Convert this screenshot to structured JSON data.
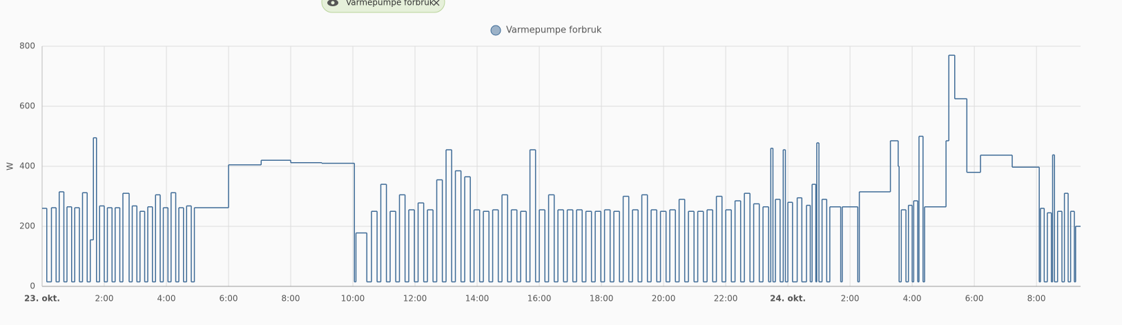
{
  "filter_chip": "Varmepumpe forbruk",
  "chart_data": {
    "type": "line",
    "step": true,
    "ylabel": "W",
    "legend": "top",
    "grid": true,
    "xlim": [
      0,
      33.42
    ],
    "ylim": [
      0,
      800
    ],
    "yticks": [
      0,
      200,
      400,
      600,
      800
    ],
    "xticks": [
      {
        "value": 0,
        "label": "23. okt."
      },
      {
        "value": 2,
        "label": "2:00"
      },
      {
        "value": 4,
        "label": "4:00"
      },
      {
        "value": 6,
        "label": "6:00"
      },
      {
        "value": 8,
        "label": "8:00"
      },
      {
        "value": 10,
        "label": "10:00"
      },
      {
        "value": 12,
        "label": "12:00"
      },
      {
        "value": 14,
        "label": "14:00"
      },
      {
        "value": 16,
        "label": "16:00"
      },
      {
        "value": 18,
        "label": "18:00"
      },
      {
        "value": 20,
        "label": "20:00"
      },
      {
        "value": 22,
        "label": "22:00"
      },
      {
        "value": 24,
        "label": "24. okt."
      },
      {
        "value": 26,
        "label": "2:00"
      },
      {
        "value": 28,
        "label": "4:00"
      },
      {
        "value": 30,
        "label": "6:00"
      },
      {
        "value": 32,
        "label": "8:00"
      }
    ],
    "series": [
      {
        "name": "Varmepumpe forbruk",
        "color": "#3d6a96",
        "x": [
          0.0,
          0.15,
          0.3,
          0.45,
          0.55,
          0.7,
          0.8,
          0.95,
          1.05,
          1.2,
          1.3,
          1.45,
          1.55,
          1.65,
          1.75,
          1.85,
          2.0,
          2.1,
          2.25,
          2.35,
          2.5,
          2.6,
          2.8,
          2.9,
          3.05,
          3.15,
          3.3,
          3.4,
          3.55,
          3.65,
          3.8,
          3.9,
          4.05,
          4.15,
          4.3,
          4.4,
          4.55,
          4.65,
          4.8,
          4.9,
          6.0,
          7.05,
          8.0,
          9.0,
          10.05,
          10.1,
          10.45,
          10.6,
          10.78,
          10.9,
          11.08,
          11.2,
          11.38,
          11.5,
          11.68,
          11.8,
          11.98,
          12.1,
          12.28,
          12.4,
          12.58,
          12.7,
          12.88,
          13.0,
          13.18,
          13.3,
          13.48,
          13.6,
          13.78,
          13.9,
          14.08,
          14.2,
          14.38,
          14.5,
          14.68,
          14.8,
          14.98,
          15.1,
          15.28,
          15.4,
          15.58,
          15.7,
          15.88,
          16.0,
          16.18,
          16.3,
          16.48,
          16.6,
          16.78,
          16.9,
          17.08,
          17.2,
          17.38,
          17.5,
          17.68,
          17.8,
          17.98,
          18.1,
          18.28,
          18.4,
          18.58,
          18.7,
          18.88,
          19.0,
          19.18,
          19.3,
          19.48,
          19.6,
          19.78,
          19.9,
          20.08,
          20.2,
          20.38,
          20.5,
          20.68,
          20.8,
          20.98,
          21.1,
          21.28,
          21.4,
          21.58,
          21.7,
          21.88,
          22.0,
          22.18,
          22.3,
          22.48,
          22.6,
          22.78,
          22.9,
          23.08,
          23.2,
          23.38,
          23.45,
          23.52,
          23.6,
          23.75,
          23.85,
          23.92,
          24.0,
          24.15,
          24.3,
          24.45,
          24.6,
          24.72,
          24.78,
          24.9,
          24.93,
          25.0,
          25.1,
          25.25,
          25.35,
          25.7,
          25.75,
          26.25,
          26.3,
          27.3,
          27.55,
          27.58,
          27.65,
          27.8,
          27.88,
          28.0,
          28.05,
          28.18,
          28.22,
          28.35,
          28.4,
          29.09,
          29.18,
          29.37,
          29.76,
          30.2,
          31.22,
          32.09,
          32.13,
          32.25,
          32.35,
          32.48,
          32.52,
          32.58,
          32.68,
          32.82,
          32.9,
          33.02,
          33.1,
          33.22,
          33.26
        ],
        "values": [
          260,
          15,
          262,
          15,
          315,
          15,
          265,
          15,
          262,
          15,
          312,
          15,
          155,
          495,
          15,
          268,
          15,
          262,
          15,
          262,
          15,
          310,
          15,
          268,
          15,
          250,
          15,
          265,
          15,
          305,
          15,
          262,
          15,
          312,
          15,
          262,
          15,
          268,
          15,
          262,
          405,
          420,
          412,
          410,
          15,
          178,
          15,
          250,
          15,
          340,
          15,
          250,
          15,
          305,
          15,
          255,
          15,
          278,
          15,
          255,
          15,
          355,
          15,
          455,
          15,
          385,
          15,
          365,
          15,
          255,
          15,
          250,
          15,
          255,
          15,
          305,
          15,
          255,
          15,
          250,
          15,
          455,
          15,
          255,
          15,
          305,
          15,
          255,
          15,
          255,
          15,
          255,
          15,
          250,
          15,
          250,
          15,
          255,
          15,
          250,
          15,
          300,
          15,
          255,
          15,
          305,
          15,
          255,
          15,
          250,
          15,
          255,
          15,
          290,
          15,
          250,
          15,
          250,
          15,
          255,
          15,
          300,
          15,
          255,
          15,
          285,
          15,
          310,
          15,
          275,
          15,
          265,
          15,
          460,
          15,
          290,
          15,
          455,
          15,
          280,
          15,
          295,
          15,
          270,
          15,
          340,
          15,
          478,
          15,
          290,
          15,
          265,
          15,
          265,
          15,
          315,
          485,
          400,
          15,
          255,
          15,
          270,
          15,
          285,
          15,
          500,
          15,
          265,
          485,
          770,
          625,
          380,
          437,
          397,
          15,
          260,
          15,
          245,
          15,
          438,
          15,
          250,
          15,
          310,
          15,
          250,
          15,
          200
        ]
      }
    ]
  }
}
